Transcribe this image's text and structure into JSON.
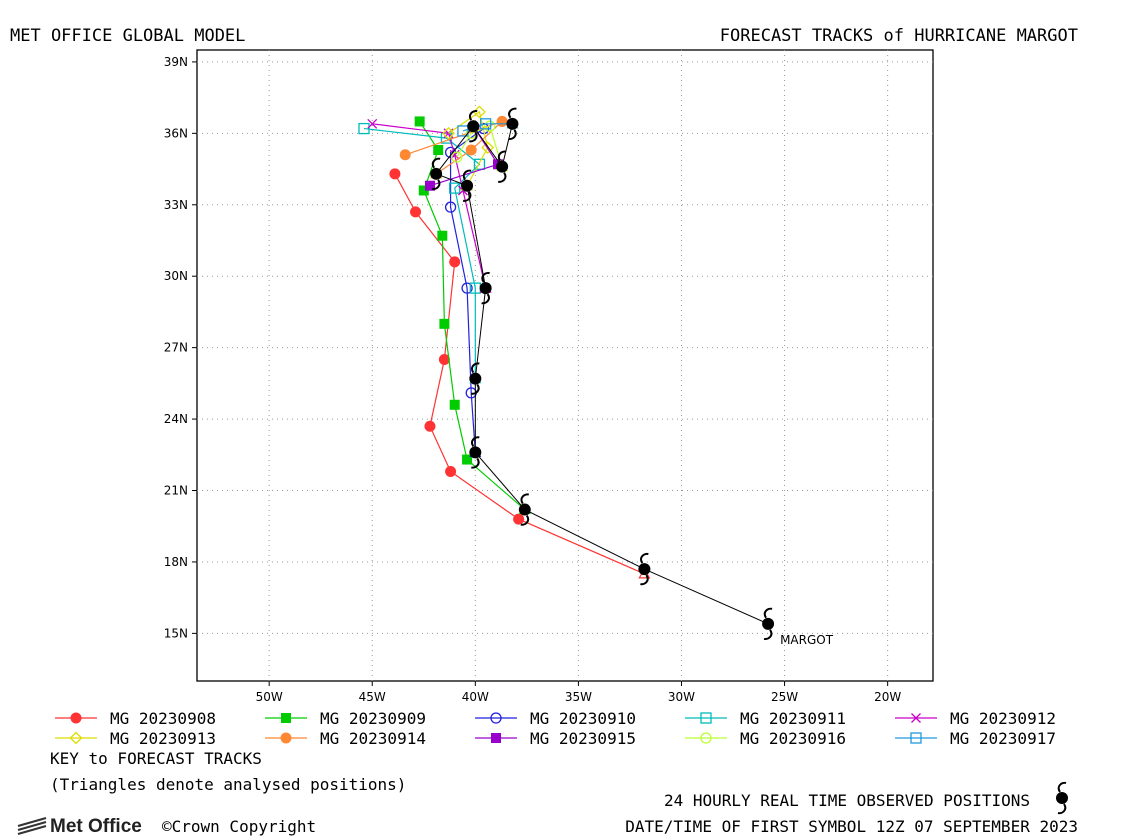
{
  "header": {
    "left_title": "MET OFFICE GLOBAL MODEL",
    "right_title": "FORECAST TRACKS of HURRICANE MARGOT"
  },
  "chart_data": {
    "type": "line",
    "xlim": [
      -53.5,
      -17.8
    ],
    "ylim": [
      13.0,
      39.5
    ],
    "x_ticks": [
      -50,
      -45,
      -40,
      -35,
      -30,
      -25,
      -20
    ],
    "x_tick_labels": [
      "50W",
      "45W",
      "40W",
      "35W",
      "30W",
      "25W",
      "20W"
    ],
    "y_ticks": [
      15,
      18,
      21,
      24,
      27,
      30,
      33,
      36,
      39
    ],
    "y_tick_labels": [
      "15N",
      "18N",
      "21N",
      "24N",
      "27N",
      "30N",
      "33N",
      "36N",
      "39N"
    ],
    "grid": true,
    "storm_label": "MARGOT",
    "observed": [
      [
        -25.8,
        15.4
      ],
      [
        -31.8,
        17.7
      ],
      [
        -37.6,
        20.2
      ],
      [
        -40.0,
        22.6
      ],
      [
        -40.0,
        25.7
      ],
      [
        -39.5,
        29.5
      ],
      [
        -40.4,
        33.8
      ],
      [
        -41.9,
        34.3
      ],
      [
        -40.1,
        36.3
      ],
      [
        -38.7,
        34.6
      ],
      [
        -38.2,
        36.4
      ]
    ],
    "series": [
      {
        "name": "MG 20230908",
        "color": "#ff3333",
        "marker": "circle-filled",
        "points": [
          [
            -31.8,
            17.5
          ],
          [
            -37.9,
            19.8
          ],
          [
            -41.2,
            21.8
          ],
          [
            -42.2,
            23.7
          ],
          [
            -41.5,
            26.5
          ],
          [
            -41.0,
            30.6
          ],
          [
            -42.9,
            32.7
          ],
          [
            -43.9,
            34.3
          ]
        ]
      },
      {
        "name": "MG 20230909",
        "color": "#00cc00",
        "marker": "square-filled",
        "points": [
          [
            -37.6,
            20.2
          ],
          [
            -40.4,
            22.3
          ],
          [
            -41.0,
            24.6
          ],
          [
            -41.5,
            28.0
          ],
          [
            -41.6,
            31.7
          ],
          [
            -42.5,
            33.6
          ],
          [
            -41.8,
            35.3
          ],
          [
            -42.7,
            36.5
          ]
        ]
      },
      {
        "name": "MG 20230910",
        "color": "#2222dd",
        "marker": "circle-open",
        "points": [
          [
            -40.0,
            22.6
          ],
          [
            -40.2,
            25.1
          ],
          [
            -40.4,
            29.5
          ],
          [
            -41.2,
            32.9
          ],
          [
            -41.2,
            35.2
          ],
          [
            -39.6,
            36.2
          ]
        ]
      },
      {
        "name": "MG 20230911",
        "color": "#00bbbb",
        "marker": "square-open",
        "points": [
          [
            -40.0,
            25.7
          ],
          [
            -40.0,
            29.5
          ],
          [
            -41.0,
            33.7
          ],
          [
            -39.8,
            34.7
          ],
          [
            -41.4,
            35.8
          ],
          [
            -45.4,
            36.2
          ]
        ]
      },
      {
        "name": "MG 20230912",
        "color": "#cc00cc",
        "marker": "cross",
        "points": [
          [
            -39.5,
            29.5
          ],
          [
            -40.6,
            33.6
          ],
          [
            -41.0,
            35.1
          ],
          [
            -41.3,
            36.0
          ],
          [
            -45.0,
            36.4
          ]
        ]
      },
      {
        "name": "MG 20230913",
        "color": "#dddd00",
        "marker": "diamond-open",
        "points": [
          [
            -40.4,
            33.8
          ],
          [
            -39.4,
            35.4
          ],
          [
            -39.8,
            36.9
          ],
          [
            -41.3,
            36.0
          ]
        ]
      },
      {
        "name": "MG 20230914",
        "color": "#ff8833",
        "marker": "circle-filled",
        "points": [
          [
            -41.9,
            34.3
          ],
          [
            -40.2,
            35.3
          ],
          [
            -38.7,
            36.5
          ],
          [
            -43.4,
            35.1
          ]
        ]
      },
      {
        "name": "MG 20230915",
        "color": "#9900cc",
        "marker": "square-filled",
        "points": [
          [
            -40.1,
            36.3
          ],
          [
            -38.9,
            34.7
          ],
          [
            -42.2,
            33.8
          ]
        ]
      },
      {
        "name": "MG 20230916",
        "color": "#bbff33",
        "marker": "circle-open",
        "points": [
          [
            -38.7,
            34.6
          ],
          [
            -39.3,
            36.3
          ],
          [
            -40.2,
            36.0
          ],
          [
            -40.9,
            35.0
          ]
        ]
      },
      {
        "name": "MG 20230917",
        "color": "#2299dd",
        "marker": "square-open",
        "points": [
          [
            -38.2,
            36.4
          ],
          [
            -39.5,
            36.4
          ],
          [
            -40.6,
            36.1
          ]
        ]
      }
    ]
  },
  "legend": {
    "key_title": "KEY to FORECAST TRACKS",
    "note": "(Triangles denote analysed positions)"
  },
  "footer": {
    "observed_label": "24 HOURLY REAL TIME OBSERVED POSITIONS",
    "first_symbol": "DATE/TIME OF FIRST SYMBOL 12Z 07 SEPTEMBER 2023",
    "logo_text": "Met Office",
    "copyright": "©Crown Copyright"
  }
}
